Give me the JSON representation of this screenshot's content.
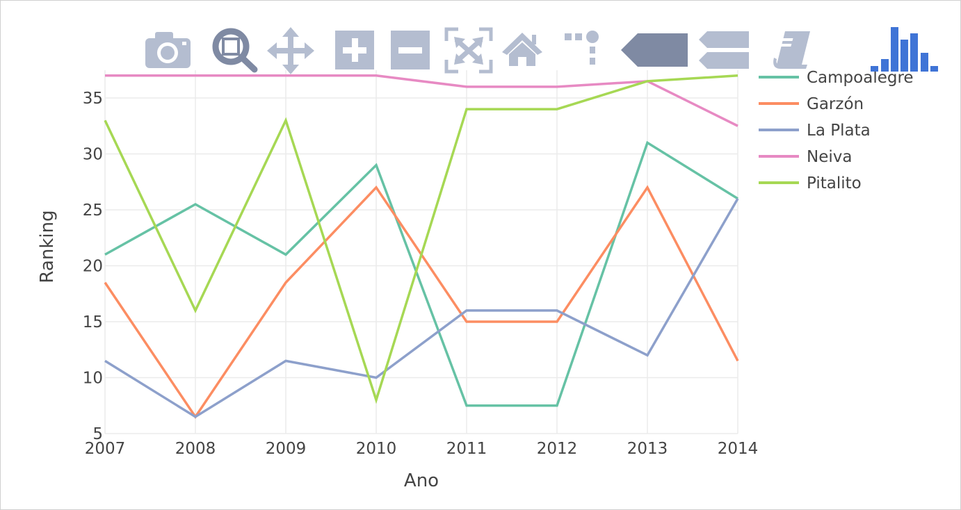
{
  "chart_data": {
    "type": "line",
    "title": "",
    "xlabel": "Ano",
    "ylabel": "Ranking",
    "x": [
      2007,
      2008,
      2009,
      2010,
      2011,
      2012,
      2013,
      2014
    ],
    "xlim": [
      2007,
      2014
    ],
    "ylim": [
      5,
      37
    ],
    "x_ticks": [
      "2007",
      "2008",
      "2009",
      "2010",
      "2011",
      "2012",
      "2013",
      "2014"
    ],
    "y_ticks": [
      5,
      10,
      15,
      20,
      25,
      30,
      35
    ],
    "grid": true,
    "legend_position": "top-right",
    "series": [
      {
        "name": "Campoalegre",
        "color": "#66c2a5",
        "values": [
          21,
          25.5,
          21,
          29,
          7.5,
          7.5,
          31,
          26
        ]
      },
      {
        "name": "Garzón",
        "color": "#fc8d62",
        "values": [
          18.5,
          6.5,
          18.5,
          27,
          15,
          15,
          27,
          11.5
        ]
      },
      {
        "name": "La Plata",
        "color": "#8da0cb",
        "values": [
          11.5,
          6.5,
          11.5,
          10,
          16,
          16,
          12,
          26
        ]
      },
      {
        "name": "Neiva",
        "color": "#e78ac3",
        "values": [
          37,
          37,
          37,
          37,
          36,
          36,
          36.5,
          32.5
        ]
      },
      {
        "name": "Pitalito",
        "color": "#a6d854",
        "values": [
          33,
          16,
          33,
          8,
          34,
          34,
          36.5,
          37
        ]
      }
    ]
  },
  "modebar": {
    "icon_color": "#b4bdd0",
    "active_color": "#7f8aa3",
    "logo_color": "#3f74d6",
    "buttons": [
      {
        "icon": "camera-icon"
      },
      {
        "icon": "zoom-icon"
      },
      {
        "icon": "pan-icon"
      },
      {
        "icon": "zoom-in-icon"
      },
      {
        "icon": "zoom-out-icon"
      },
      {
        "icon": "autoscale-icon"
      },
      {
        "icon": "home-icon"
      },
      {
        "icon": "spike-lines-icon"
      },
      {
        "icon": "hover-closest-icon"
      },
      {
        "icon": "hover-compare-icon"
      },
      {
        "icon": "edit-in-chart-studio-icon"
      },
      {
        "icon": "plotly-logo-icon"
      }
    ]
  }
}
